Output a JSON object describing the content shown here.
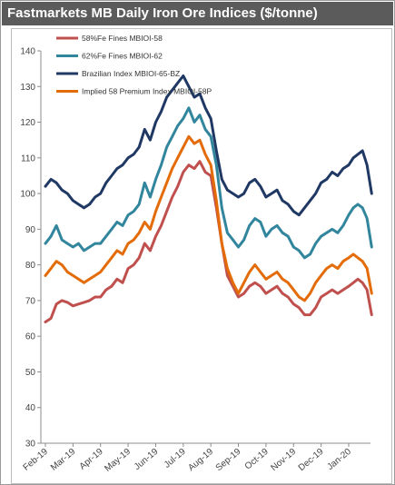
{
  "title": "Fastmarkets MB Daily Iron Ore Indices ($/tonne)",
  "colors": {
    "title_bar_bg": "#5b5b5b",
    "title_text": "#ffffff"
  },
  "chart_data": {
    "type": "line",
    "title": "Fastmarkets MB Daily Iron Ore Indices ($/tonne)",
    "xlabel": "",
    "ylabel": "",
    "ylim": [
      30,
      140
    ],
    "yticks": [
      30,
      40,
      50,
      60,
      70,
      80,
      90,
      100,
      110,
      120,
      130,
      140
    ],
    "x_tick_labels": [
      "Feb-19",
      "Mar-19",
      "Apr-19",
      "May-19",
      "Jun-19",
      "Jul-19",
      "Aug-19",
      "Sep-19",
      "Oct-19",
      "Nov-19",
      "Dec-19",
      "Jan-20"
    ],
    "grid": false,
    "legend_position": "top-left",
    "series": [
      {
        "name": "58%Fe Fines MBIOI-58",
        "color": "#c0504d",
        "values": [
          [
            "Feb-19",
            64
          ],
          [
            "Feb-19",
            65
          ],
          [
            "Feb-19",
            69
          ],
          [
            "Feb-19",
            70
          ],
          [
            "Feb-19",
            69.5
          ],
          [
            "Mar-19",
            68.5
          ],
          [
            "Mar-19",
            69
          ],
          [
            "Mar-19",
            69.5
          ],
          [
            "Mar-19",
            70
          ],
          [
            "Mar-19",
            71
          ],
          [
            "Apr-19",
            71
          ],
          [
            "Apr-19",
            73
          ],
          [
            "Apr-19",
            74
          ],
          [
            "Apr-19",
            76
          ],
          [
            "Apr-19",
            75
          ],
          [
            "May-19",
            79
          ],
          [
            "May-19",
            80
          ],
          [
            "May-19",
            82
          ],
          [
            "May-19",
            86
          ],
          [
            "May-19",
            84
          ],
          [
            "Jun-19",
            88
          ],
          [
            "Jun-19",
            91
          ],
          [
            "Jun-19",
            95
          ],
          [
            "Jun-19",
            99
          ],
          [
            "Jun-19",
            102
          ],
          [
            "Jul-19",
            106
          ],
          [
            "Jul-19",
            108
          ],
          [
            "Jul-19",
            107
          ],
          [
            "Jul-19",
            109
          ],
          [
            "Jul-19",
            106
          ],
          [
            "Aug-19",
            105
          ],
          [
            "Aug-19",
            96
          ],
          [
            "Aug-19",
            86
          ],
          [
            "Aug-19",
            77
          ],
          [
            "Aug-19",
            74
          ],
          [
            "Sep-19",
            71
          ],
          [
            "Sep-19",
            72
          ],
          [
            "Sep-19",
            74
          ],
          [
            "Sep-19",
            75
          ],
          [
            "Sep-19",
            74
          ],
          [
            "Oct-19",
            72
          ],
          [
            "Oct-19",
            73
          ],
          [
            "Oct-19",
            74
          ],
          [
            "Oct-19",
            72
          ],
          [
            "Oct-19",
            71
          ],
          [
            "Nov-19",
            69
          ],
          [
            "Nov-19",
            68
          ],
          [
            "Nov-19",
            66
          ],
          [
            "Nov-19",
            66
          ],
          [
            "Nov-19",
            68
          ],
          [
            "Dec-19",
            71
          ],
          [
            "Dec-19",
            72
          ],
          [
            "Dec-19",
            73
          ],
          [
            "Dec-19",
            72
          ],
          [
            "Dec-19",
            73
          ],
          [
            "Jan-20",
            74
          ],
          [
            "Jan-20",
            75
          ],
          [
            "Jan-20",
            76
          ],
          [
            "Jan-20",
            75
          ],
          [
            "Jan-20",
            73
          ],
          [
            "Jan-20",
            66
          ]
        ]
      },
      {
        "name": "62%Fe Fines MBIOI-62",
        "color": "#31859c",
        "values": [
          [
            "Feb-19",
            86
          ],
          [
            "Feb-19",
            88
          ],
          [
            "Feb-19",
            91
          ],
          [
            "Feb-19",
            87
          ],
          [
            "Feb-19",
            86
          ],
          [
            "Mar-19",
            85
          ],
          [
            "Mar-19",
            86
          ],
          [
            "Mar-19",
            84
          ],
          [
            "Mar-19",
            85
          ],
          [
            "Mar-19",
            86
          ],
          [
            "Apr-19",
            86
          ],
          [
            "Apr-19",
            88
          ],
          [
            "Apr-19",
            90
          ],
          [
            "Apr-19",
            92
          ],
          [
            "Apr-19",
            91
          ],
          [
            "May-19",
            94
          ],
          [
            "May-19",
            95
          ],
          [
            "May-19",
            97
          ],
          [
            "May-19",
            103
          ],
          [
            "May-19",
            99
          ],
          [
            "Jun-19",
            104
          ],
          [
            "Jun-19",
            108
          ],
          [
            "Jun-19",
            113
          ],
          [
            "Jun-19",
            116
          ],
          [
            "Jun-19",
            119
          ],
          [
            "Jul-19",
            121
          ],
          [
            "Jul-19",
            124
          ],
          [
            "Jul-19",
            120
          ],
          [
            "Jul-19",
            122
          ],
          [
            "Jul-19",
            118
          ],
          [
            "Aug-19",
            116
          ],
          [
            "Aug-19",
            108
          ],
          [
            "Aug-19",
            96
          ],
          [
            "Aug-19",
            89
          ],
          [
            "Aug-19",
            87
          ],
          [
            "Sep-19",
            85
          ],
          [
            "Sep-19",
            87
          ],
          [
            "Sep-19",
            91
          ],
          [
            "Sep-19",
            93
          ],
          [
            "Sep-19",
            92
          ],
          [
            "Oct-19",
            88
          ],
          [
            "Oct-19",
            90
          ],
          [
            "Oct-19",
            91
          ],
          [
            "Oct-19",
            89
          ],
          [
            "Oct-19",
            88
          ],
          [
            "Nov-19",
            85
          ],
          [
            "Nov-19",
            84
          ],
          [
            "Nov-19",
            82
          ],
          [
            "Nov-19",
            83
          ],
          [
            "Nov-19",
            86
          ],
          [
            "Dec-19",
            88
          ],
          [
            "Dec-19",
            89
          ],
          [
            "Dec-19",
            90
          ],
          [
            "Dec-19",
            89
          ],
          [
            "Dec-19",
            91
          ],
          [
            "Jan-20",
            94
          ],
          [
            "Jan-20",
            96
          ],
          [
            "Jan-20",
            97
          ],
          [
            "Jan-20",
            96
          ],
          [
            "Jan-20",
            93
          ],
          [
            "Jan-20",
            85
          ]
        ]
      },
      {
        "name": "Brazilian Index MBIOI-65-BZ",
        "color": "#1f3864",
        "values": [
          [
            "Feb-19",
            102
          ],
          [
            "Feb-19",
            104
          ],
          [
            "Feb-19",
            103
          ],
          [
            "Feb-19",
            101
          ],
          [
            "Feb-19",
            100
          ],
          [
            "Mar-19",
            98
          ],
          [
            "Mar-19",
            97
          ],
          [
            "Mar-19",
            96
          ],
          [
            "Mar-19",
            97
          ],
          [
            "Mar-19",
            99
          ],
          [
            "Apr-19",
            100
          ],
          [
            "Apr-19",
            103
          ],
          [
            "Apr-19",
            105
          ],
          [
            "Apr-19",
            107
          ],
          [
            "Apr-19",
            108
          ],
          [
            "May-19",
            110
          ],
          [
            "May-19",
            111
          ],
          [
            "May-19",
            113
          ],
          [
            "May-19",
            118
          ],
          [
            "May-19",
            115
          ],
          [
            "Jun-19",
            120
          ],
          [
            "Jun-19",
            123
          ],
          [
            "Jun-19",
            127
          ],
          [
            "Jun-19",
            129
          ],
          [
            "Jun-19",
            131
          ],
          [
            "Jul-19",
            133
          ],
          [
            "Jul-19",
            130
          ],
          [
            "Jul-19",
            127
          ],
          [
            "Jul-19",
            128
          ],
          [
            "Jul-19",
            124
          ],
          [
            "Aug-19",
            121
          ],
          [
            "Aug-19",
            112
          ],
          [
            "Aug-19",
            104
          ],
          [
            "Aug-19",
            101
          ],
          [
            "Aug-19",
            100
          ],
          [
            "Sep-19",
            99
          ],
          [
            "Sep-19",
            100
          ],
          [
            "Sep-19",
            103
          ],
          [
            "Sep-19",
            104
          ],
          [
            "Sep-19",
            102
          ],
          [
            "Oct-19",
            99
          ],
          [
            "Oct-19",
            100
          ],
          [
            "Oct-19",
            101
          ],
          [
            "Oct-19",
            98
          ],
          [
            "Oct-19",
            97
          ],
          [
            "Nov-19",
            95
          ],
          [
            "Nov-19",
            94
          ],
          [
            "Nov-19",
            96
          ],
          [
            "Nov-19",
            98
          ],
          [
            "Nov-19",
            100
          ],
          [
            "Dec-19",
            103
          ],
          [
            "Dec-19",
            104
          ],
          [
            "Dec-19",
            106
          ],
          [
            "Dec-19",
            105
          ],
          [
            "Dec-19",
            107
          ],
          [
            "Jan-20",
            108
          ],
          [
            "Jan-20",
            110
          ],
          [
            "Jan-20",
            111
          ],
          [
            "Jan-20",
            112
          ],
          [
            "Jan-20",
            108
          ],
          [
            "Jan-20",
            100
          ]
        ]
      },
      {
        "name": "Implied 58 Premium Index MBIOI-58P",
        "color": "#e36c09",
        "values": [
          [
            "Feb-19",
            77
          ],
          [
            "Feb-19",
            79
          ],
          [
            "Feb-19",
            81
          ],
          [
            "Feb-19",
            80
          ],
          [
            "Feb-19",
            78
          ],
          [
            "Mar-19",
            77
          ],
          [
            "Mar-19",
            76
          ],
          [
            "Mar-19",
            75
          ],
          [
            "Mar-19",
            76
          ],
          [
            "Mar-19",
            77
          ],
          [
            "Apr-19",
            78
          ],
          [
            "Apr-19",
            80
          ],
          [
            "Apr-19",
            82
          ],
          [
            "Apr-19",
            84
          ],
          [
            "Apr-19",
            83
          ],
          [
            "May-19",
            86
          ],
          [
            "May-19",
            87
          ],
          [
            "May-19",
            89
          ],
          [
            "May-19",
            92
          ],
          [
            "May-19",
            90
          ],
          [
            "Jun-19",
            95
          ],
          [
            "Jun-19",
            99
          ],
          [
            "Jun-19",
            103
          ],
          [
            "Jun-19",
            107
          ],
          [
            "Jun-19",
            110
          ],
          [
            "Jul-19",
            113
          ],
          [
            "Jul-19",
            116
          ],
          [
            "Jul-19",
            114
          ],
          [
            "Jul-19",
            115
          ],
          [
            "Jul-19",
            111
          ],
          [
            "Aug-19",
            108
          ],
          [
            "Aug-19",
            98
          ],
          [
            "Aug-19",
            86
          ],
          [
            "Aug-19",
            79
          ],
          [
            "Aug-19",
            75
          ],
          [
            "Sep-19",
            72
          ],
          [
            "Sep-19",
            75
          ],
          [
            "Sep-19",
            78
          ],
          [
            "Sep-19",
            80
          ],
          [
            "Sep-19",
            78
          ],
          [
            "Oct-19",
            76
          ],
          [
            "Oct-19",
            77
          ],
          [
            "Oct-19",
            78
          ],
          [
            "Oct-19",
            76
          ],
          [
            "Oct-19",
            75
          ],
          [
            "Nov-19",
            73
          ],
          [
            "Nov-19",
            71
          ],
          [
            "Nov-19",
            70
          ],
          [
            "Nov-19",
            72
          ],
          [
            "Nov-19",
            75
          ],
          [
            "Dec-19",
            77
          ],
          [
            "Dec-19",
            79
          ],
          [
            "Dec-19",
            80
          ],
          [
            "Dec-19",
            79
          ],
          [
            "Dec-19",
            81
          ],
          [
            "Jan-20",
            82
          ],
          [
            "Jan-20",
            83
          ],
          [
            "Jan-20",
            82
          ],
          [
            "Jan-20",
            81
          ],
          [
            "Jan-20",
            79
          ],
          [
            "Jan-20",
            72
          ]
        ]
      }
    ]
  }
}
